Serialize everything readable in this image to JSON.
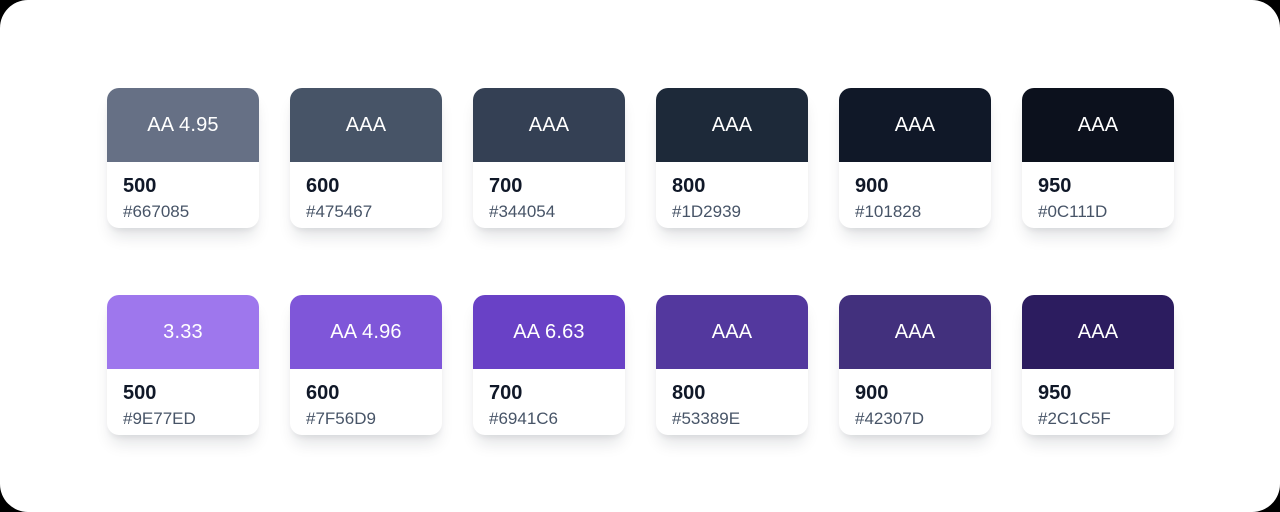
{
  "page": {
    "background_outside": "#000000",
    "panel_background": "#FFFFFF"
  },
  "colors": {
    "swatch_label_text": "#FFFFFF",
    "shade_text": "#101828",
    "hex_text": "#475467",
    "card_background": "#FFFFFF"
  },
  "palette": {
    "rows": [
      {
        "cards": [
          {
            "contrast_label": "AA 4.95",
            "shade": "500",
            "hex": "#667085"
          },
          {
            "contrast_label": "AAA",
            "shade": "600",
            "hex": "#475467"
          },
          {
            "contrast_label": "AAA",
            "shade": "700",
            "hex": "#344054"
          },
          {
            "contrast_label": "AAA",
            "shade": "800",
            "hex": "#1D2939"
          },
          {
            "contrast_label": "AAA",
            "shade": "900",
            "hex": "#101828"
          },
          {
            "contrast_label": "AAA",
            "shade": "950",
            "hex": "#0C111D"
          }
        ]
      },
      {
        "cards": [
          {
            "contrast_label": "3.33",
            "shade": "500",
            "hex": "#9E77ED"
          },
          {
            "contrast_label": "AA 4.96",
            "shade": "600",
            "hex": "#7F56D9"
          },
          {
            "contrast_label": "AA 6.63",
            "shade": "700",
            "hex": "#6941C6"
          },
          {
            "contrast_label": "AAA",
            "shade": "800",
            "hex": "#53389E"
          },
          {
            "contrast_label": "AAA",
            "shade": "900",
            "hex": "#42307D"
          },
          {
            "contrast_label": "AAA",
            "shade": "950",
            "hex": "#2C1C5F"
          }
        ]
      }
    ]
  }
}
